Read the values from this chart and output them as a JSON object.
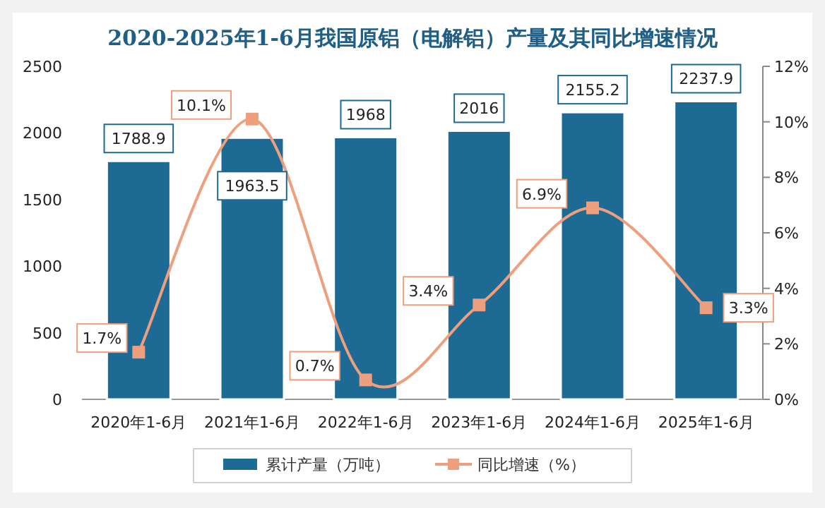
{
  "chart_data": {
    "type": "bar",
    "title": "2020-2025年1-6月我国原铝（电解铝）产量及其同比增速情况",
    "categories": [
      "2020年1-6月",
      "2021年1-6月",
      "2022年1-6月",
      "2023年1-6月",
      "2024年1-6月",
      "2025年1-6月"
    ],
    "series": [
      {
        "name": "累计产量（万吨）",
        "color": "#1d6a94",
        "values": [
          1788.9,
          1963.5,
          1968,
          2016,
          2155.2,
          2237.9
        ]
      },
      {
        "name": "同比增速（%）",
        "type": "line",
        "axis": "y2",
        "color": "#ee9f7d",
        "values": [
          1.7,
          10.1,
          0.7,
          3.4,
          6.9,
          3.3
        ],
        "value_labels": [
          "1.7%",
          "10.1%",
          "0.7%",
          "3.4%",
          "6.9%",
          "3.3%"
        ]
      }
    ],
    "ylim": [
      0,
      2500
    ],
    "yticks": [
      0,
      500,
      1000,
      1500,
      2000,
      2500
    ],
    "y2lim": [
      0,
      12
    ],
    "y2ticks": [
      {
        "value": 0,
        "label": "0%"
      },
      {
        "value": 2,
        "label": "2%"
      },
      {
        "value": 4,
        "label": "4%"
      },
      {
        "value": 6,
        "label": "6%"
      },
      {
        "value": 8,
        "label": "8%"
      },
      {
        "value": 10,
        "label": "10%"
      },
      {
        "value": 12,
        "label": "12%"
      }
    ],
    "data_labels": true,
    "marker": "square",
    "legend": "bottom"
  }
}
